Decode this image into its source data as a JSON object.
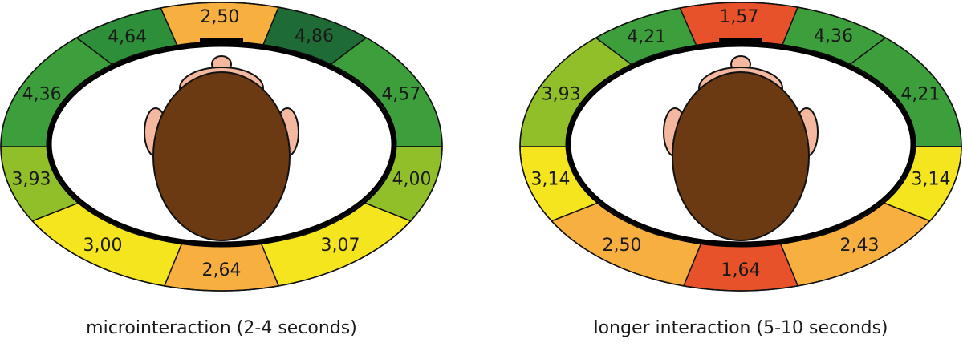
{
  "panels": [
    {
      "caption": "microinteraction (2-4 seconds)",
      "segments": [
        {
          "label": "2,50",
          "color": "#f7b040"
        },
        {
          "label": "4,86",
          "color": "#1f6b35"
        },
        {
          "label": "4,57",
          "color": "#3c9f3c"
        },
        {
          "label": "4,00",
          "color": "#90bf2a"
        },
        {
          "label": "3,07",
          "color": "#f4e51f"
        },
        {
          "label": "2,64",
          "color": "#f7b040"
        },
        {
          "label": "3,00",
          "color": "#f4e51f"
        },
        {
          "label": "3,93",
          "color": "#90bf2a"
        },
        {
          "label": "4,36",
          "color": "#3c9f3c"
        },
        {
          "label": "4,64",
          "color": "#2d8f3a"
        }
      ]
    },
    {
      "caption": "longer interaction (5-10 seconds)",
      "segments": [
        {
          "label": "1,57",
          "color": "#e8522a"
        },
        {
          "label": "4,36",
          "color": "#3c9f3c"
        },
        {
          "label": "4,21",
          "color": "#3c9f3c"
        },
        {
          "label": "3,14",
          "color": "#f4e51f"
        },
        {
          "label": "2,43",
          "color": "#f7b040"
        },
        {
          "label": "1,64",
          "color": "#e8522a"
        },
        {
          "label": "2,50",
          "color": "#f7b040"
        },
        {
          "label": "3,14",
          "color": "#f4e51f"
        },
        {
          "label": "3,93",
          "color": "#90bf2a"
        },
        {
          "label": "4,21",
          "color": "#3c9f3c"
        }
      ]
    }
  ]
}
